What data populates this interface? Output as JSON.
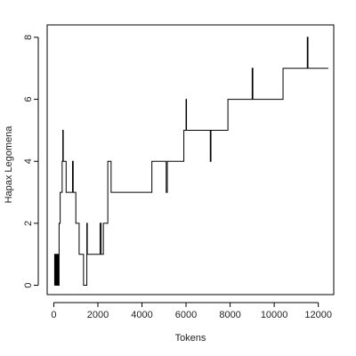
{
  "chart_data": {
    "type": "line",
    "xlabel": "Tokens",
    "ylabel": "Hapax Legomena",
    "xlim": [
      -300,
      12700
    ],
    "ylim": [
      -0.3,
      8.4
    ],
    "x_ticks": [
      0,
      2000,
      4000,
      6000,
      8000,
      10000,
      12000
    ],
    "y_ticks": [
      0,
      2,
      4,
      6,
      8
    ],
    "grid": false,
    "colors": {
      "line": "#000000",
      "axis": "#000000"
    },
    "series": [
      {
        "style": "step",
        "points": [
          [
            40,
            0
          ],
          [
            40,
            1
          ],
          [
            60,
            1
          ],
          [
            60,
            0
          ],
          [
            80,
            0
          ],
          [
            80,
            1
          ],
          [
            100,
            1
          ],
          [
            100,
            0
          ],
          [
            120,
            0
          ],
          [
            120,
            1
          ],
          [
            140,
            1
          ],
          [
            140,
            0
          ],
          [
            160,
            0
          ],
          [
            160,
            1
          ],
          [
            180,
            1
          ],
          [
            180,
            0
          ],
          [
            200,
            0
          ],
          [
            200,
            1
          ],
          [
            220,
            1
          ],
          [
            220,
            0
          ],
          [
            240,
            0
          ],
          [
            240,
            2
          ],
          [
            290,
            2
          ],
          [
            290,
            3
          ],
          [
            380,
            3
          ],
          [
            380,
            4
          ],
          [
            410,
            4
          ],
          [
            410,
            5
          ],
          [
            430,
            5
          ],
          [
            430,
            4
          ],
          [
            560,
            4
          ],
          [
            560,
            3
          ],
          [
            850,
            3
          ],
          [
            850,
            4
          ],
          [
            880,
            4
          ],
          [
            880,
            3
          ],
          [
            1000,
            3
          ],
          [
            1000,
            2
          ],
          [
            1150,
            2
          ],
          [
            1150,
            1
          ],
          [
            1350,
            1
          ],
          [
            1350,
            0
          ],
          [
            1500,
            0
          ],
          [
            1500,
            2
          ],
          [
            1520,
            2
          ],
          [
            1520,
            1
          ],
          [
            2100,
            1
          ],
          [
            2100,
            2
          ],
          [
            2150,
            2
          ],
          [
            2150,
            1
          ],
          [
            2250,
            1
          ],
          [
            2250,
            2
          ],
          [
            2450,
            2
          ],
          [
            2450,
            4
          ],
          [
            2600,
            4
          ],
          [
            2600,
            3
          ],
          [
            4450,
            3
          ],
          [
            4450,
            4
          ],
          [
            5100,
            4
          ],
          [
            5100,
            3
          ],
          [
            5150,
            3
          ],
          [
            5150,
            4
          ],
          [
            5900,
            4
          ],
          [
            5900,
            5
          ],
          [
            6000,
            5
          ],
          [
            6000,
            6
          ],
          [
            6020,
            6
          ],
          [
            6020,
            5
          ],
          [
            7100,
            5
          ],
          [
            7100,
            4
          ],
          [
            7130,
            4
          ],
          [
            7130,
            5
          ],
          [
            7900,
            5
          ],
          [
            7900,
            6
          ],
          [
            9000,
            6
          ],
          [
            9000,
            7
          ],
          [
            9030,
            7
          ],
          [
            9030,
            6
          ],
          [
            10400,
            6
          ],
          [
            10400,
            7
          ],
          [
            11500,
            7
          ],
          [
            11500,
            8
          ],
          [
            11530,
            8
          ],
          [
            11530,
            7
          ],
          [
            12450,
            7
          ]
        ]
      }
    ]
  }
}
